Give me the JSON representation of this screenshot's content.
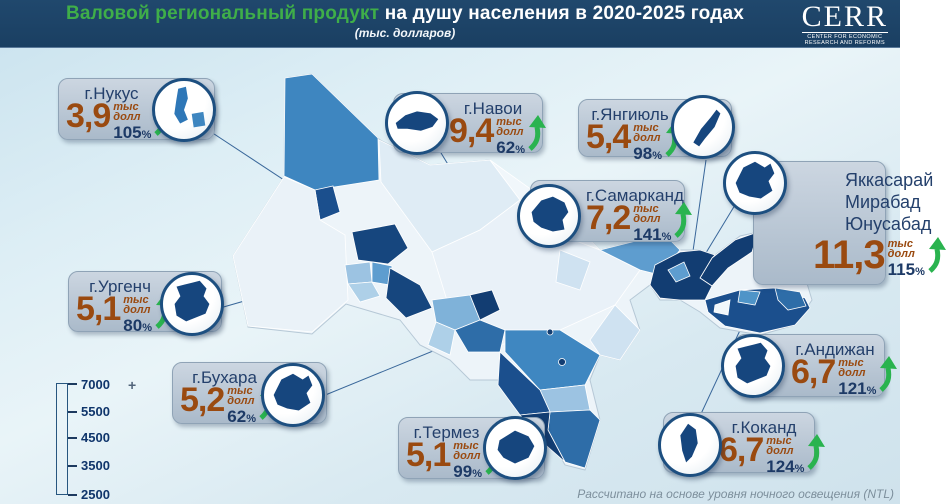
{
  "header": {
    "title_green": "Валовой региональный продукт",
    "title_white": "на душу населения в 2020-2025 годах",
    "subtitle": "(тыс. долларов)",
    "logo": {
      "text": "CERR",
      "caption_line1": "CENTER FOR ECONOMIC",
      "caption_line2": "RESEARCH AND REFORMS"
    }
  },
  "labels": {
    "pct_sign": "%",
    "unit_line1": "тыс",
    "unit_line2": "долл"
  },
  "callouts": [
    {
      "city": "г.Нукус",
      "value": "3,9",
      "percent": "105"
    },
    {
      "city": "г.Навои",
      "value": "9,4",
      "percent": "62"
    },
    {
      "city": "г.Янгиюль",
      "value": "5,4",
      "percent": "98"
    },
    {
      "city_lines": [
        "Яккасарай",
        "Мирабад",
        "Юнусабад"
      ],
      "value": "11,3",
      "percent": "115"
    },
    {
      "city": "г.Самарканд",
      "value": "7,2",
      "percent": "141"
    },
    {
      "city": "г.Ургенч",
      "value": "5,1",
      "percent": "80"
    },
    {
      "city": "г.Бухара",
      "value": "5,2",
      "percent": "62"
    },
    {
      "city": "г.Термез",
      "value": "5,1",
      "percent": "99"
    },
    {
      "city": "г.Андижан",
      "value": "6,7",
      "percent": "121"
    },
    {
      "city": "г.Коканд",
      "value": "6,7",
      "percent": "124"
    }
  ],
  "legend": {
    "ticks": [
      "7000",
      "5500",
      "4500",
      "3500",
      "2500"
    ],
    "plus": "+"
  },
  "footer": {
    "note": "Рассчитано на основе уровня ночного освещения (NTL)"
  },
  "colors": {
    "header_bg": "#1d4367",
    "title_green": "#3fae49",
    "value_brown": "#9a4a10",
    "navy_text": "#1d3a66",
    "arrow_green": "#2ab34f",
    "circle_border": "#1d4f80",
    "map_palette": [
      "#f1f7fb",
      "#dfecf5",
      "#aed0e8",
      "#7fb2d9",
      "#4f94c8",
      "#2e6da8",
      "#1b4f8d",
      "#123d72"
    ],
    "legend_scale_top": "#0a3a6b",
    "legend_scale_bottom": "#eef6fb"
  }
}
